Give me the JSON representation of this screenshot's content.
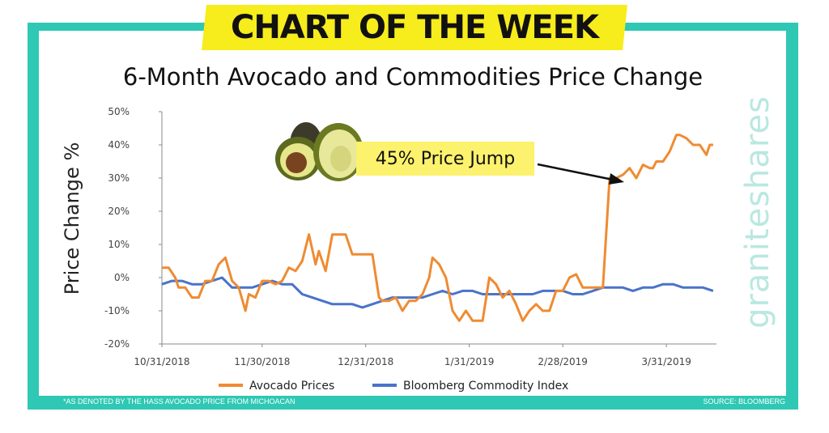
{
  "header": {
    "banner": "CHART OF THE WEEK",
    "title": "6-Month Avocado and Commodities Price Change"
  },
  "callout": "45% Price Jump",
  "brand": "graniteshares",
  "footnote": "*AS DENOTED BY THE HASS AVOCADO PRICE FROM MICHOACAN",
  "source": "SOURCE: BLOOMBERG",
  "colors": {
    "frame": "#2ec8b4",
    "banner": "#f7ec1c",
    "callout": "#fcf26d",
    "avocado": "#ef8b32",
    "bloomberg": "#4a73c9"
  },
  "chart_data": {
    "type": "line",
    "ylabel": "Price Change %",
    "xlabel": "",
    "ylim": [
      -20,
      50
    ],
    "yticks": [
      -20,
      -10,
      0,
      10,
      20,
      30,
      40,
      50
    ],
    "ytick_labels": [
      "-20%",
      "-10%",
      "0%",
      "10%",
      "20%",
      "30%",
      "40%",
      "50%"
    ],
    "xlim": [
      0,
      166
    ],
    "xticks": [
      {
        "x": 0,
        "label": "10/31/2018"
      },
      {
        "x": 30,
        "label": "11/30/2018"
      },
      {
        "x": 61,
        "label": "12/31/2018"
      },
      {
        "x": 92,
        "label": "1/31/2019"
      },
      {
        "x": 120,
        "label": "2/28/2019"
      },
      {
        "x": 151,
        "label": "3/31/2019"
      }
    ],
    "legend": "bottom",
    "series": [
      {
        "name": "Avocado Prices",
        "color": "#ef8b32",
        "x": [
          0,
          2,
          4,
          5,
          7,
          9,
          11,
          13,
          15,
          17,
          19,
          21,
          23,
          25,
          26,
          28,
          30,
          32,
          34,
          36,
          38,
          40,
          42,
          44,
          46,
          47,
          49,
          51,
          53,
          55,
          57,
          59,
          61,
          63,
          65,
          66,
          68,
          70,
          72,
          74,
          76,
          78,
          80,
          81,
          83,
          85,
          87,
          89,
          91,
          93,
          94,
          96,
          98,
          100,
          102,
          104,
          106,
          108,
          110,
          112,
          114,
          116,
          118,
          120,
          122,
          124,
          126,
          128,
          130,
          132,
          134,
          136,
          138,
          140,
          142,
          144,
          146,
          147,
          148,
          150,
          152,
          154,
          155,
          157,
          159,
          161,
          163,
          164,
          165
        ],
        "y": [
          3,
          3,
          0,
          -3,
          -3,
          -6,
          -6,
          -1,
          -1,
          4,
          6,
          -1,
          -3,
          -10,
          -5,
          -6,
          -1,
          -1,
          -2,
          -1,
          3,
          2,
          5,
          13,
          4,
          8,
          2,
          13,
          13,
          13,
          7,
          7,
          7,
          7,
          -6,
          -7,
          -7,
          -6,
          -10,
          -7,
          -7,
          -5,
          0,
          6,
          4,
          0,
          -10,
          -13,
          -10,
          -13,
          -13,
          -13,
          0,
          -2,
          -6,
          -4,
          -8,
          -13,
          -10,
          -8,
          -10,
          -10,
          -4,
          -4,
          0,
          1,
          -3,
          -3,
          -3,
          -3,
          30,
          30,
          31,
          33,
          30,
          34,
          33,
          33,
          35,
          35,
          38,
          43,
          43,
          42,
          40,
          40,
          37,
          40,
          40
        ]
      },
      {
        "name": "Bloomberg Commodity Index",
        "color": "#4a73c9",
        "x": [
          0,
          3,
          6,
          9,
          12,
          15,
          18,
          21,
          24,
          27,
          30,
          33,
          36,
          39,
          42,
          45,
          48,
          51,
          54,
          57,
          60,
          63,
          66,
          69,
          72,
          75,
          78,
          81,
          84,
          87,
          90,
          93,
          96,
          99,
          102,
          105,
          108,
          111,
          114,
          117,
          120,
          123,
          126,
          129,
          132,
          135,
          138,
          141,
          144,
          147,
          150,
          153,
          156,
          159,
          162,
          165
        ],
        "y": [
          -2,
          -1,
          -1,
          -2,
          -2,
          -1,
          0,
          -3,
          -3,
          -3,
          -2,
          -1,
          -2,
          -2,
          -5,
          -6,
          -7,
          -8,
          -8,
          -8,
          -9,
          -8,
          -7,
          -6,
          -6,
          -6,
          -6,
          -5,
          -4,
          -5,
          -4,
          -4,
          -5,
          -5,
          -5,
          -5,
          -5,
          -5,
          -4,
          -4,
          -4,
          -5,
          -5,
          -4,
          -3,
          -3,
          -3,
          -4,
          -3,
          -3,
          -2,
          -2,
          -3,
          -3,
          -3,
          -4
        ]
      }
    ]
  }
}
